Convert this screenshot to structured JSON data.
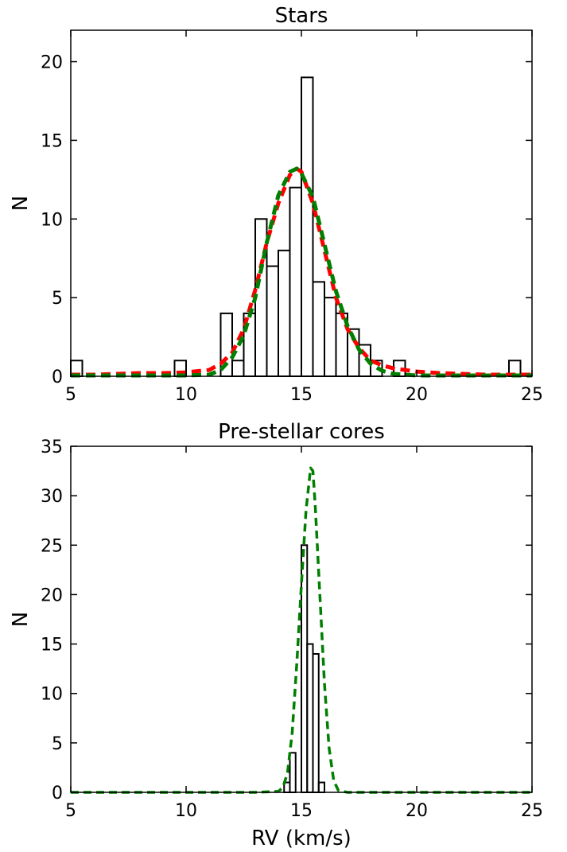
{
  "chart_data": [
    {
      "type": "bar",
      "title": "Stars",
      "xlabel": "",
      "ylabel": "N",
      "xlim": [
        5,
        25
      ],
      "ylim": [
        0,
        22
      ],
      "xticks": [
        5,
        10,
        15,
        20,
        25
      ],
      "yticks": [
        0,
        5,
        10,
        15,
        20
      ],
      "grid": false,
      "histogram": {
        "bin_width": 0.5,
        "bins": [
          {
            "x0": 5.0,
            "count": 1
          },
          {
            "x0": 9.5,
            "count": 1
          },
          {
            "x0": 11.5,
            "count": 4
          },
          {
            "x0": 12.0,
            "count": 1
          },
          {
            "x0": 12.5,
            "count": 4
          },
          {
            "x0": 13.0,
            "count": 10
          },
          {
            "x0": 13.5,
            "count": 7
          },
          {
            "x0": 14.0,
            "count": 8
          },
          {
            "x0": 14.5,
            "count": 12
          },
          {
            "x0": 15.0,
            "count": 19
          },
          {
            "x0": 15.5,
            "count": 6
          },
          {
            "x0": 16.0,
            "count": 5
          },
          {
            "x0": 16.5,
            "count": 4
          },
          {
            "x0": 17.0,
            "count": 3
          },
          {
            "x0": 17.5,
            "count": 2
          },
          {
            "x0": 18.0,
            "count": 1
          },
          {
            "x0": 19.0,
            "count": 1
          },
          {
            "x0": 24.0,
            "count": 1
          }
        ]
      },
      "series": [
        {
          "style": "dashed",
          "color": "#ff0000",
          "x": [
            5,
            6,
            7,
            8,
            9,
            10,
            11,
            11.5,
            12,
            12.5,
            13,
            13.5,
            14,
            14.5,
            14.8,
            15,
            15.5,
            16,
            16.5,
            17,
            17.5,
            18,
            18.5,
            19,
            20,
            21,
            22,
            23,
            24,
            25
          ],
          "y": [
            0.1,
            0.1,
            0.15,
            0.2,
            0.2,
            0.25,
            0.4,
            0.8,
            1.5,
            3.0,
            5.5,
            8.5,
            11.0,
            12.8,
            13.2,
            13.0,
            11.0,
            8.0,
            5.0,
            3.0,
            1.8,
            1.0,
            0.7,
            0.5,
            0.3,
            0.2,
            0.15,
            0.1,
            0.1,
            0.1
          ]
        },
        {
          "style": "dashed",
          "color": "#007f00",
          "x": [
            5,
            6,
            7,
            8,
            9,
            10,
            11,
            11.5,
            12,
            12.5,
            13,
            13.5,
            14,
            14.5,
            14.8,
            15,
            15.5,
            16,
            16.5,
            17,
            17.5,
            18,
            18.5,
            19,
            20,
            21,
            22,
            23,
            24,
            25
          ],
          "y": [
            0.05,
            0.05,
            0.05,
            0.05,
            0.05,
            0.05,
            0.1,
            0.4,
            1.2,
            2.6,
            5.0,
            8.5,
            11.5,
            13.0,
            13.2,
            12.9,
            11.4,
            8.4,
            5.4,
            3.2,
            1.7,
            0.8,
            0.35,
            0.15,
            0.05,
            0.05,
            0.05,
            0.05,
            0.05,
            0.05
          ]
        }
      ]
    },
    {
      "type": "bar",
      "title": "Pre-stellar cores",
      "xlabel": "RV (km/s)",
      "ylabel": "N",
      "xlim": [
        5,
        25
      ],
      "ylim": [
        0,
        35
      ],
      "xticks": [
        5,
        10,
        15,
        20,
        25
      ],
      "yticks": [
        0,
        5,
        10,
        15,
        20,
        25,
        30,
        35
      ],
      "grid": false,
      "histogram": {
        "bin_width": 0.25,
        "bins": [
          {
            "x0": 14.25,
            "count": 1
          },
          {
            "x0": 14.5,
            "count": 4
          },
          {
            "x0": 14.75,
            "count": 0
          },
          {
            "x0": 15.0,
            "count": 25
          },
          {
            "x0": 15.25,
            "count": 15
          },
          {
            "x0": 15.5,
            "count": 14
          },
          {
            "x0": 15.75,
            "count": 1
          }
        ]
      },
      "series": [
        {
          "style": "dashed",
          "color": "#007f00",
          "x": [
            5,
            10,
            13,
            14,
            14.2,
            14.4,
            14.6,
            14.8,
            15.0,
            15.2,
            15.4,
            15.5,
            15.6,
            15.8,
            16.0,
            16.2,
            16.4,
            16.6,
            17,
            20,
            25
          ],
          "y": [
            0,
            0,
            0,
            0.1,
            0.5,
            2.0,
            6.0,
            13.0,
            21.0,
            28.5,
            32.8,
            32.5,
            29.0,
            20.0,
            11.0,
            4.5,
            1.2,
            0.2,
            0,
            0,
            0
          ]
        }
      ]
    }
  ]
}
